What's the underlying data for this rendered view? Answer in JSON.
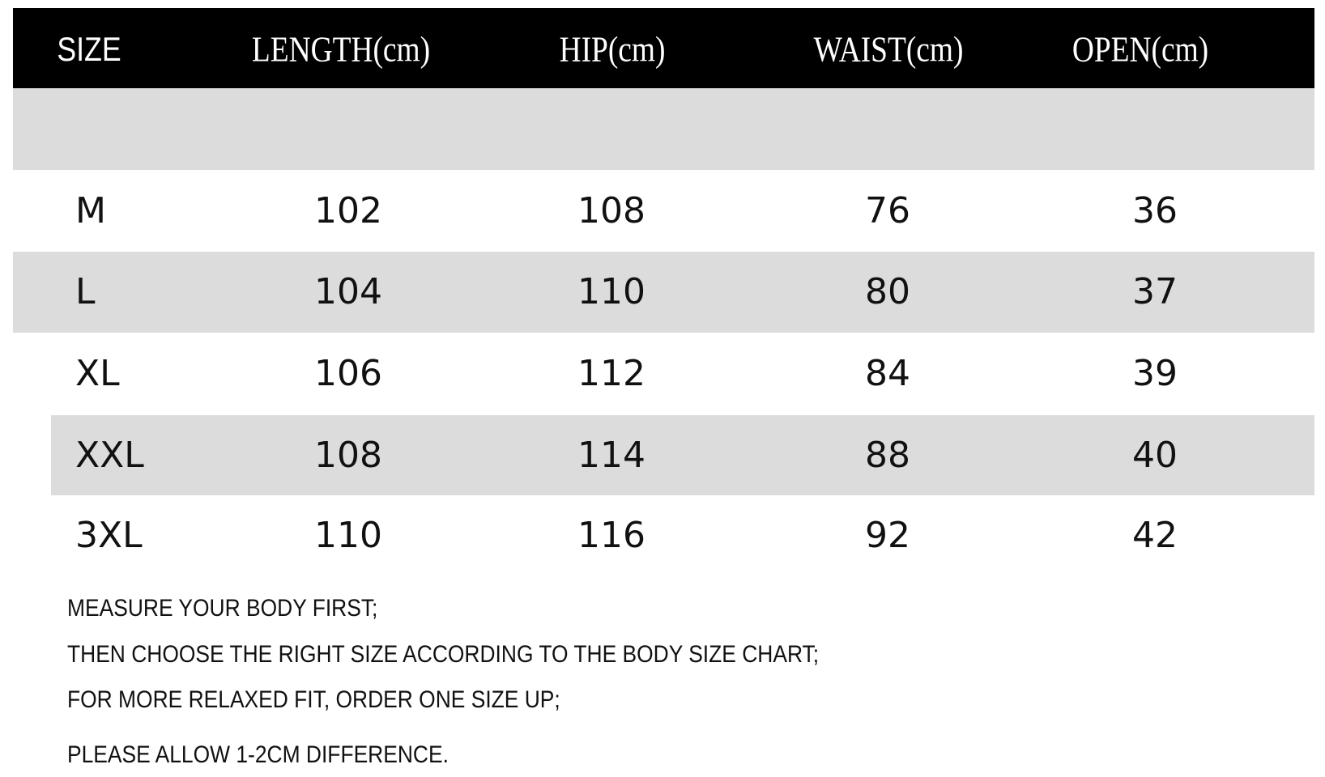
{
  "table": {
    "header": [
      "SIZE",
      "LENGTH(cm)",
      "HIP(cm)",
      "WAIST(cm)",
      "OPEN(cm)"
    ],
    "rows": [
      [
        "M",
        102,
        108,
        76,
        36
      ],
      [
        "L",
        104,
        110,
        80,
        37
      ],
      [
        "XL",
        106,
        112,
        84,
        39
      ],
      [
        "XXL",
        108,
        114,
        88,
        40
      ],
      [
        "3XL",
        110,
        116,
        92,
        42
      ]
    ]
  },
  "notes": [
    "MEASURE YOUR BODY FIRST;",
    "THEN CHOOSE THE RIGHT SIZE ACCORDING TO THE BODY SIZE CHART;",
    "FOR MORE RELAXED FIT, ORDER ONE SIZE UP;",
    "PLEASE ALLOW 1-2CM DIFFERENCE."
  ]
}
